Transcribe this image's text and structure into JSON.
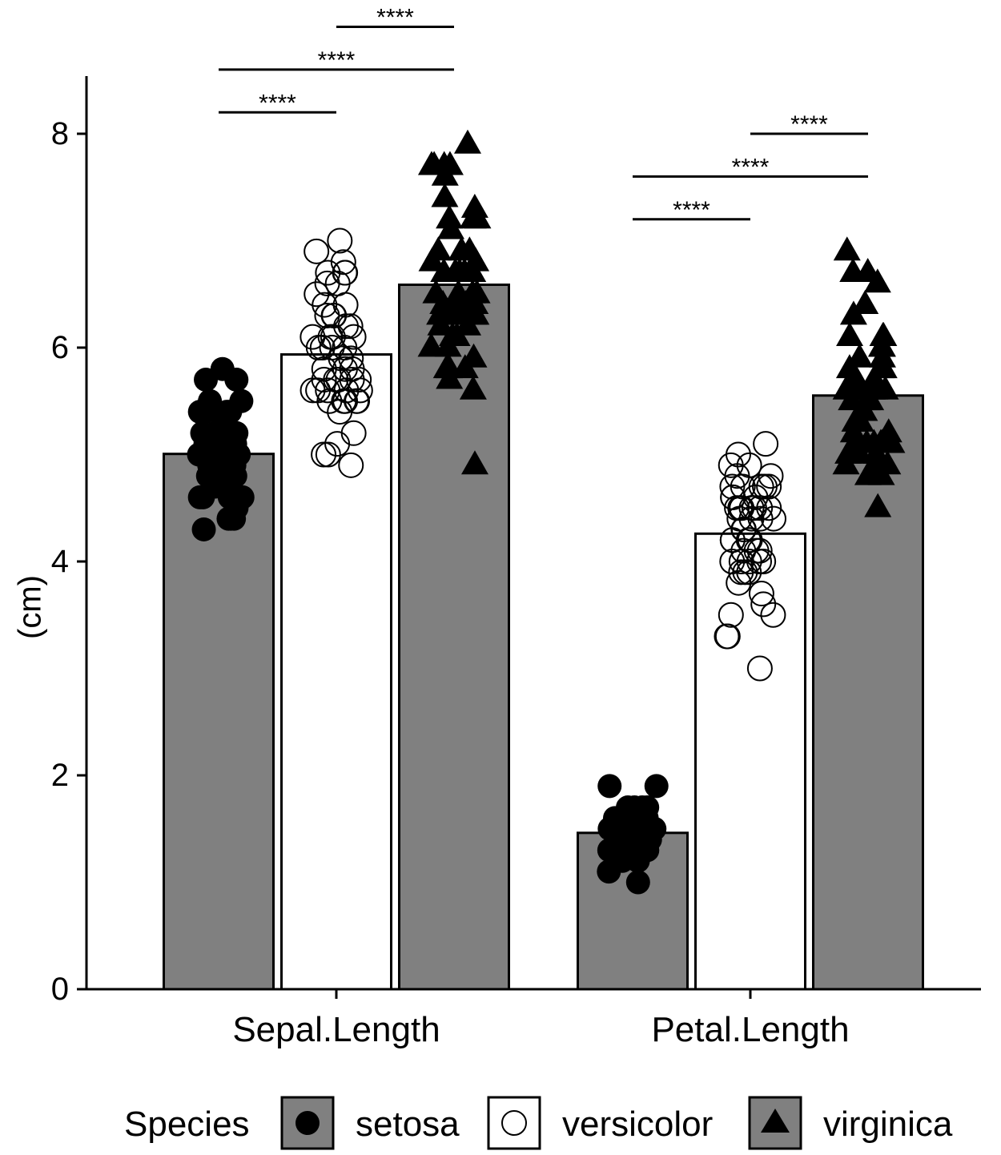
{
  "chart_data": {
    "type": "bar",
    "title": "",
    "xlabel": "",
    "ylabel": "(cm)",
    "ylim": [
      0,
      8.5
    ],
    "yticks": [
      0,
      2,
      4,
      6,
      8
    ],
    "categories": [
      "Sepal.Length",
      "Petal.Length"
    ],
    "grid": false,
    "legend_position": "bottom",
    "legend_title": "Species",
    "series": [
      {
        "name": "setosa",
        "fill": "#808080",
        "marker": "filled-circle",
        "values": [
          5.006,
          1.462
        ],
        "points": [
          [
            5.1,
            4.9,
            4.7,
            4.6,
            5.0,
            5.4,
            4.6,
            5.0,
            4.4,
            4.9,
            5.4,
            4.8,
            4.8,
            4.3,
            5.8,
            5.7,
            5.4,
            5.1,
            5.7,
            5.1,
            5.4,
            5.1,
            4.6,
            5.1,
            4.8,
            5.0,
            5.0,
            5.2,
            5.2,
            4.7,
            4.8,
            5.4,
            5.2,
            5.5,
            4.9,
            5.0,
            5.5,
            4.9,
            4.4,
            5.1,
            5.0,
            4.5,
            4.4,
            5.0,
            5.1,
            4.8,
            5.1,
            4.6,
            5.3,
            5.0
          ],
          [
            1.4,
            1.4,
            1.3,
            1.5,
            1.4,
            1.7,
            1.4,
            1.5,
            1.4,
            1.5,
            1.5,
            1.6,
            1.4,
            1.1,
            1.2,
            1.5,
            1.3,
            1.4,
            1.7,
            1.5,
            1.7,
            1.5,
            1.0,
            1.7,
            1.9,
            1.6,
            1.6,
            1.5,
            1.4,
            1.6,
            1.6,
            1.5,
            1.5,
            1.4,
            1.5,
            1.2,
            1.3,
            1.4,
            1.3,
            1.5,
            1.3,
            1.3,
            1.3,
            1.6,
            1.9,
            1.4,
            1.6,
            1.4,
            1.5,
            1.4
          ]
        ]
      },
      {
        "name": "versicolor",
        "fill": "#ffffff",
        "marker": "open-circle",
        "values": [
          5.936,
          4.26
        ],
        "points": [
          [
            7.0,
            6.4,
            6.9,
            5.5,
            6.5,
            5.7,
            6.3,
            4.9,
            6.6,
            5.2,
            5.0,
            5.9,
            6.0,
            6.1,
            5.6,
            6.7,
            5.6,
            5.8,
            6.2,
            5.6,
            5.9,
            6.1,
            6.3,
            6.1,
            6.4,
            6.6,
            6.8,
            6.7,
            6.0,
            5.7,
            5.5,
            5.5,
            5.8,
            6.0,
            5.4,
            6.0,
            6.7,
            6.3,
            5.6,
            5.5,
            5.5,
            6.1,
            5.8,
            5.0,
            5.6,
            5.7,
            5.7,
            6.2,
            5.1,
            5.7
          ],
          [
            4.7,
            4.5,
            4.9,
            4.0,
            4.6,
            4.5,
            4.7,
            3.3,
            4.6,
            3.9,
            3.5,
            4.2,
            4.0,
            4.7,
            3.6,
            4.4,
            4.5,
            4.1,
            4.5,
            3.9,
            4.8,
            4.0,
            4.9,
            4.7,
            4.3,
            4.4,
            4.8,
            5.0,
            4.5,
            3.5,
            3.8,
            3.7,
            3.9,
            5.1,
            4.5,
            4.5,
            4.7,
            4.4,
            4.1,
            4.0,
            4.4,
            4.6,
            4.0,
            3.3,
            4.2,
            4.2,
            4.2,
            4.3,
            3.0,
            4.1
          ]
        ]
      },
      {
        "name": "virginica",
        "fill": "#808080",
        "marker": "filled-triangle",
        "values": [
          6.588,
          5.552
        ],
        "points": [
          [
            6.3,
            5.8,
            7.1,
            6.3,
            6.5,
            7.6,
            4.9,
            7.3,
            6.7,
            7.2,
            6.5,
            6.4,
            6.8,
            5.7,
            5.8,
            6.4,
            6.5,
            7.7,
            7.7,
            6.0,
            6.9,
            5.6,
            7.7,
            6.3,
            6.7,
            7.2,
            6.2,
            6.1,
            6.4,
            7.2,
            7.4,
            7.9,
            6.4,
            6.3,
            6.1,
            7.7,
            6.3,
            6.4,
            6.0,
            6.9,
            6.7,
            6.9,
            5.8,
            6.8,
            6.7,
            6.7,
            6.3,
            6.5,
            6.2,
            5.9
          ],
          [
            6.0,
            5.1,
            5.9,
            5.6,
            5.8,
            6.6,
            4.5,
            6.3,
            5.8,
            6.1,
            5.1,
            5.3,
            5.5,
            5.0,
            5.1,
            5.3,
            5.5,
            6.7,
            6.9,
            5.0,
            5.7,
            4.9,
            6.7,
            4.9,
            5.7,
            6.0,
            4.8,
            4.9,
            5.6,
            5.8,
            6.1,
            6.4,
            5.6,
            5.1,
            5.6,
            6.1,
            5.6,
            5.5,
            4.8,
            5.4,
            5.6,
            5.1,
            5.1,
            5.9,
            5.7,
            5.2,
            5.0,
            5.2,
            5.4,
            5.1
          ]
        ]
      }
    ],
    "comparisons": [
      {
        "category": "Sepal.Length",
        "from": "setosa",
        "to": "versicolor",
        "y": 8.2,
        "label": "****"
      },
      {
        "category": "Sepal.Length",
        "from": "setosa",
        "to": "virginica",
        "y": 8.6,
        "label": "****"
      },
      {
        "category": "Sepal.Length",
        "from": "versicolor",
        "to": "virginica",
        "y": 9.0,
        "label": "****"
      },
      {
        "category": "Petal.Length",
        "from": "setosa",
        "to": "versicolor",
        "y": 7.2,
        "label": "****"
      },
      {
        "category": "Petal.Length",
        "from": "setosa",
        "to": "virginica",
        "y": 7.6,
        "label": "****"
      },
      {
        "category": "Petal.Length",
        "from": "versicolor",
        "to": "virginica",
        "y": 8.0,
        "label": "****"
      }
    ]
  }
}
